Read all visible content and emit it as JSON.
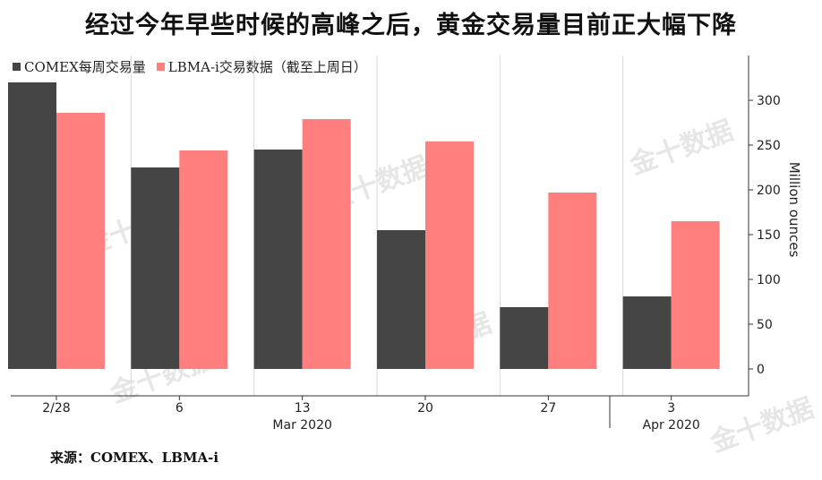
{
  "title": "经过今年早些时候的高峰之后，黄金交易量目前正大幅下降",
  "source": "来源：COMEX、LBMA-i",
  "watermark": "金十数据",
  "chart_data": {
    "type": "bar",
    "categories": [
      "2/28",
      "6",
      "13",
      "20",
      "27",
      "3"
    ],
    "month_labels": [
      {
        "label": "Mar 2020",
        "under_category": 2
      },
      {
        "label": "Apr 2020",
        "under_category": 5
      }
    ],
    "series": [
      {
        "name": "COMEX每周交易量",
        "color": "#454545",
        "values": [
          320,
          225,
          245,
          155,
          69,
          81
        ]
      },
      {
        "name": "LBMA-i交易数据（截至上周日）",
        "color": "#ff7f7f",
        "values": [
          286,
          244,
          279,
          254,
          197,
          165
        ]
      }
    ],
    "ylabel": "Million ounces",
    "ylim": [
      -30,
      350
    ],
    "yticks": [
      0,
      50,
      100,
      150,
      200,
      250,
      300
    ],
    "legend_position": "top-left",
    "grid": "vertical"
  }
}
